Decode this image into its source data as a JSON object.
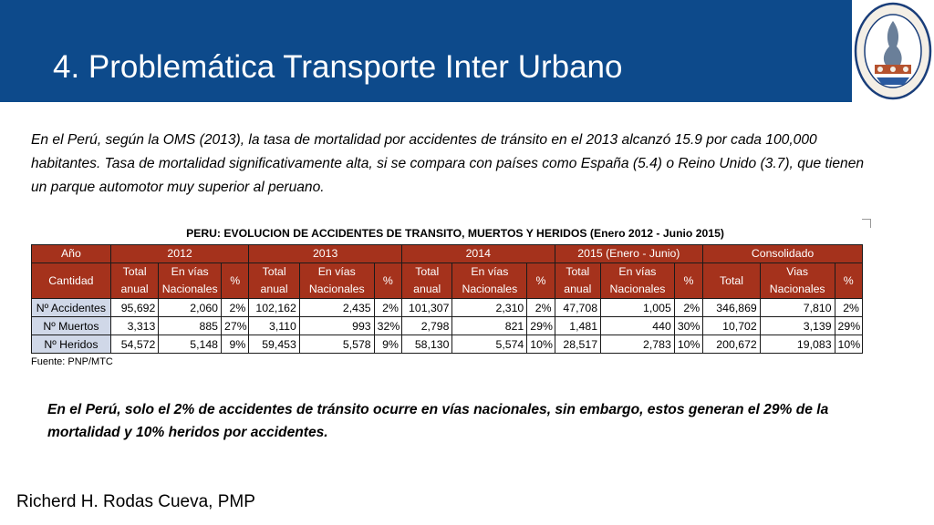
{
  "slide": {
    "title": "4. Problemática Transporte Inter Urbano",
    "logo_icon": "university-seal-icon",
    "intro_text": "En el Perú, según la OMS (2013), la tasa de mortalidad por accidentes de tránsito en el 2013 alcanzó 15.9 por cada 100,000 habitantes. Tasa de mortalidad significativamente alta, si se compara con países como España (5.4) o Reino Unido (3.7), que tienen un parque automotor muy superior al peruano.",
    "conclusion_text": "En el Perú, solo el 2% de accidentes de tránsito ocurre en vías nacionales, sin embargo,  estos generan el 29% de la mortalidad y 10% heridos por accidentes.",
    "author": "Richerd H. Rodas Cueva, PMP"
  },
  "table": {
    "caption": "PERU: EVOLUCION DE ACCIDENTES DE TRANSITO, MUERTOS Y HERIDOS (Enero 2012 - Junio 2015)",
    "year_label": "Año",
    "quantity_label": "Cantidad",
    "years": [
      "2012",
      "2013",
      "2014",
      "2015 (Enero - Junio)",
      "Consolidado"
    ],
    "sub_headers": {
      "total_line1": "Total",
      "total_line2": "anual",
      "vias_line1": "En vías",
      "vias_line2": "Nacionales",
      "pct": "%",
      "cons_total": "Total",
      "cons_vias_line1": "Vias",
      "cons_vias_line2": "Nacionales"
    },
    "rows": [
      {
        "label": "Nº Accidentes",
        "values": [
          "95,692",
          "2,060",
          "2%",
          "102,162",
          "2,435",
          "2%",
          "101,307",
          "2,310",
          "2%",
          "47,708",
          "1,005",
          "2%",
          "346,869",
          "7,810",
          "2%"
        ]
      },
      {
        "label": "Nº Muertos",
        "values": [
          "3,313",
          "885",
          "27%",
          "3,110",
          "993",
          "32%",
          "2,798",
          "821",
          "29%",
          "1,481",
          "440",
          "30%",
          "10,702",
          "3,139",
          "29%"
        ]
      },
      {
        "label": "Nº Heridos",
        "values": [
          "54,572",
          "5,148",
          "9%",
          "59,453",
          "5,578",
          "9%",
          "58,130",
          "5,574",
          "10%",
          "28,517",
          "2,783",
          "10%",
          "200,672",
          "19,083",
          "10%"
        ]
      }
    ],
    "source": "Fuente: PNP/MTC",
    "colors": {
      "header_bg": "#a5321c",
      "label_bg": "#d0d8e8"
    }
  },
  "colors": {
    "header_band": "#0d4a8b"
  }
}
